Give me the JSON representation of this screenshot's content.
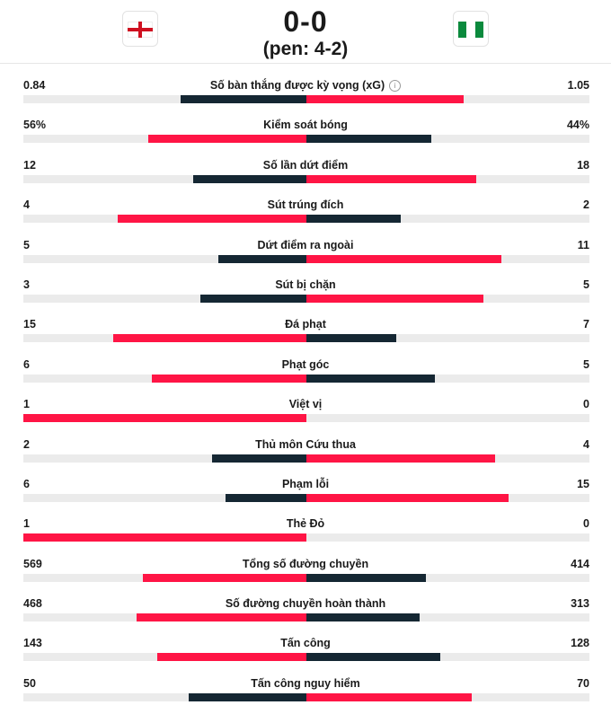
{
  "match": {
    "home_flag": "england-flag",
    "away_flag": "nigeria-flag",
    "score": "0-0",
    "penalties": "(pen: 4-2)"
  },
  "colors": {
    "leader": "#ff1545",
    "trailer": "#152733",
    "track": "#ebebeb"
  },
  "stats": [
    {
      "label": "Số bàn thắng được kỳ vọng (xG)",
      "home": "0.84",
      "away": "1.05",
      "hv": 0.84,
      "av": 1.05,
      "info": true
    },
    {
      "label": "Kiểm soát bóng",
      "home": "56%",
      "away": "44%",
      "hv": 56,
      "av": 44
    },
    {
      "label": "Số lần dứt điểm",
      "home": "12",
      "away": "18",
      "hv": 12,
      "av": 18
    },
    {
      "label": "Sút trúng đích",
      "home": "4",
      "away": "2",
      "hv": 4,
      "av": 2
    },
    {
      "label": "Dứt điểm ra ngoài",
      "home": "5",
      "away": "11",
      "hv": 5,
      "av": 11
    },
    {
      "label": "Sút bị chặn",
      "home": "3",
      "away": "5",
      "hv": 3,
      "av": 5
    },
    {
      "label": "Đá phạt",
      "home": "15",
      "away": "7",
      "hv": 15,
      "av": 7
    },
    {
      "label": "Phạt góc",
      "home": "6",
      "away": "5",
      "hv": 6,
      "av": 5
    },
    {
      "label": "Việt vị",
      "home": "1",
      "away": "0",
      "hv": 1,
      "av": 0
    },
    {
      "label": "Thủ môn Cứu thua",
      "home": "2",
      "away": "4",
      "hv": 2,
      "av": 4
    },
    {
      "label": "Phạm lỗi",
      "home": "6",
      "away": "15",
      "hv": 6,
      "av": 15
    },
    {
      "label": "Thẻ Đỏ",
      "home": "1",
      "away": "0",
      "hv": 1,
      "av": 0
    },
    {
      "label": "Tổng số đường chuyền",
      "home": "569",
      "away": "414",
      "hv": 569,
      "av": 414
    },
    {
      "label": "Số đường chuyền hoàn thành",
      "home": "468",
      "away": "313",
      "hv": 468,
      "av": 313
    },
    {
      "label": "Tấn công",
      "home": "143",
      "away": "128",
      "hv": 143,
      "av": 128
    },
    {
      "label": "Tấn công nguy hiểm",
      "home": "50",
      "away": "70",
      "hv": 50,
      "av": 70
    }
  ]
}
